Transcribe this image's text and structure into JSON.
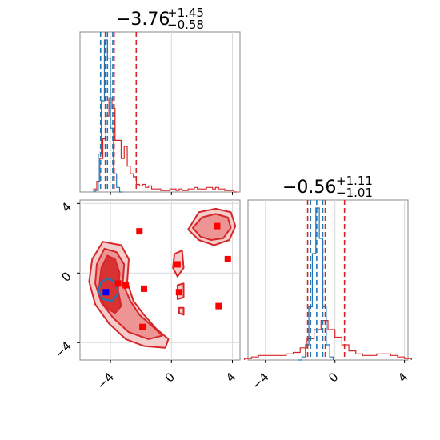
{
  "colors": {
    "red": "#d62728",
    "blue": "#1f77b4",
    "marker_red": "#ff0000",
    "marker_blue": "#0000ff",
    "grid": "#d9d9d9",
    "contour_fill_light": "#f4c7c7",
    "contour_fill_mid": "#ec8e8e",
    "contour_fill_dark": "#d62728"
  },
  "chart_data": {
    "type": "corner",
    "parameters": [
      "",
      ""
    ],
    "ranges": [
      [
        -6,
        4.5
      ],
      [
        -5,
        4.2
      ]
    ],
    "tick_values": [
      -4,
      0,
      4
    ],
    "tick_labels": [
      "−4",
      "0",
      "4"
    ],
    "grid": true,
    "panels": {
      "p1_marginal": {
        "title_value": "−3.76",
        "title_upper": "+1.45",
        "title_lower": "−0.58",
        "quantile_lines_red": [
          -4.34,
          -3.76,
          -2.31
        ],
        "quantile_lines_blue": [
          -4.65,
          -4.2,
          -3.85
        ],
        "hist_blue": {
          "x": [
            -4.9,
            -4.7,
            -4.5,
            -4.3,
            -4.1,
            -3.9,
            -3.7,
            -3.5,
            -3.3
          ],
          "y": [
            0.01,
            0.25,
            0.6,
            1.0,
            0.88,
            0.42,
            0.12,
            0.03,
            0.0
          ]
        },
        "hist_red": {
          "x": [
            -5.0,
            -4.8,
            -4.6,
            -4.4,
            -4.2,
            -4.0,
            -3.8,
            -3.6,
            -3.4,
            -3.2,
            -3.0,
            -2.8,
            -2.6,
            -2.4,
            -2.2,
            -2.0,
            -1.8,
            -1.6,
            -1.4,
            -1.2,
            -1.0,
            -0.8,
            -0.6,
            -0.4,
            -0.2,
            0.0,
            0.2,
            0.4,
            0.6,
            0.8,
            1.0,
            1.2,
            1.4,
            1.6,
            1.8,
            2.0,
            2.2,
            2.4,
            2.6,
            2.8,
            3.0,
            3.2,
            3.4,
            3.6,
            3.8,
            4.0,
            4.2
          ],
          "y": [
            0.02,
            0.07,
            0.22,
            0.35,
            0.5,
            0.62,
            0.55,
            0.34,
            0.34,
            0.22,
            0.3,
            0.17,
            0.12,
            0.1,
            0.05,
            0.04,
            0.05,
            0.03,
            0.04,
            0.02,
            0.02,
            0.02,
            0.01,
            0.01,
            0.01,
            0.02,
            0.02,
            0.01,
            0.02,
            0.01,
            0.01,
            0.02,
            0.02,
            0.03,
            0.02,
            0.02,
            0.02,
            0.03,
            0.03,
            0.02,
            0.03,
            0.02,
            0.02,
            0.01,
            0.01,
            0.01,
            0.0
          ]
        }
      },
      "p2_marginal": {
        "title_value": "−0.56",
        "title_upper": "+1.11",
        "title_lower": "−1.01",
        "quantile_lines_red": [
          -1.57,
          -0.56,
          0.55
        ],
        "quantile_lines_blue": [
          -1.4,
          -1.05,
          -0.7
        ],
        "hist_blue": {
          "x": [
            -2.0,
            -1.8,
            -1.6,
            -1.4,
            -1.2,
            -1.0,
            -0.8,
            -0.6,
            -0.4,
            -0.2
          ],
          "y": [
            0.0,
            0.02,
            0.1,
            0.35,
            0.7,
            1.0,
            0.8,
            0.35,
            0.1,
            0.02
          ]
        },
        "hist_red": {
          "x": [
            -5.0,
            -4.6,
            -4.2,
            -3.8,
            -3.4,
            -3.0,
            -2.6,
            -2.2,
            -1.8,
            -1.4,
            -1.0,
            -0.6,
            -0.2,
            0.2,
            0.6,
            1.0,
            1.4,
            1.8,
            2.2,
            2.6,
            3.0,
            3.4,
            3.8,
            4.2
          ],
          "y": [
            0.01,
            0.02,
            0.03,
            0.03,
            0.03,
            0.03,
            0.04,
            0.05,
            0.08,
            0.14,
            0.2,
            0.26,
            0.2,
            0.15,
            0.1,
            0.06,
            0.04,
            0.03,
            0.03,
            0.04,
            0.04,
            0.03,
            0.02,
            0.01
          ]
        }
      },
      "joint": {
        "red_markers": [
          [
            -2.1,
            2.4
          ],
          [
            3.0,
            2.7
          ],
          [
            0.4,
            0.5
          ],
          [
            3.7,
            0.8
          ],
          [
            -1.8,
            -0.9
          ],
          [
            0.5,
            -1.1
          ],
          [
            -1.9,
            -3.1
          ],
          [
            3.1,
            -1.9
          ],
          [
            -3.5,
            -0.6
          ],
          [
            -3.0,
            -0.7
          ]
        ],
        "blue_markers": [
          [
            -4.3,
            -1.1
          ]
        ],
        "contours_red": [
          [
            [
              -5.2,
              0.8
            ],
            [
              -4.5,
              1.8
            ],
            [
              -3.3,
              1.6
            ],
            [
              -2.8,
              0.8
            ],
            [
              -2.9,
              -0.5
            ],
            [
              -2.5,
              -1.6
            ],
            [
              -1.8,
              -2.4
            ],
            [
              -1.0,
              -3.2
            ],
            [
              -0.2,
              -3.8
            ],
            [
              -0.4,
              -4.3
            ],
            [
              -1.8,
              -4.2
            ],
            [
              -3.0,
              -3.8
            ],
            [
              -4.1,
              -2.9
            ],
            [
              -5.0,
              -1.8
            ],
            [
              -5.4,
              -0.5
            ]
          ],
          [
            [
              -4.9,
              0.5
            ],
            [
              -4.4,
              1.4
            ],
            [
              -3.6,
              1.2
            ],
            [
              -3.1,
              0.5
            ],
            [
              -3.2,
              -0.6
            ],
            [
              -2.7,
              -1.6
            ],
            [
              -2.1,
              -2.4
            ],
            [
              -1.2,
              -3.1
            ],
            [
              -0.6,
              -3.6
            ],
            [
              -1.5,
              -3.8
            ],
            [
              -2.8,
              -3.4
            ],
            [
              -3.8,
              -2.6
            ],
            [
              -4.6,
              -1.7
            ],
            [
              -5.0,
              -0.6
            ]
          ],
          [
            [
              -4.6,
              0.3
            ],
            [
              -4.2,
              1.0
            ],
            [
              -3.7,
              0.8
            ],
            [
              -3.4,
              0.0
            ],
            [
              -3.5,
              -1.0
            ],
            [
              -3.3,
              -1.9
            ],
            [
              -3.7,
              -2.3
            ],
            [
              -4.3,
              -2.0
            ],
            [
              -4.8,
              -1.2
            ]
          ],
          [
            [
              1.1,
              2.5
            ],
            [
              1.8,
              3.5
            ],
            [
              2.9,
              3.7
            ],
            [
              3.9,
              3.5
            ],
            [
              4.2,
              2.7
            ],
            [
              3.8,
              1.9
            ],
            [
              2.8,
              1.6
            ],
            [
              1.8,
              1.9
            ]
          ],
          [
            [
              1.4,
              2.6
            ],
            [
              2.0,
              3.2
            ],
            [
              2.9,
              3.4
            ],
            [
              3.7,
              3.2
            ],
            [
              3.9,
              2.6
            ],
            [
              3.4,
              2.0
            ],
            [
              2.6,
              1.9
            ],
            [
              1.9,
              2.1
            ]
          ],
          [
            [
              0.2,
              1.1
            ],
            [
              0.7,
              1.3
            ],
            [
              0.8,
              0.3
            ],
            [
              0.4,
              -0.2
            ],
            [
              0.1,
              0.3
            ]
          ],
          [
            [
              0.4,
              -0.7
            ],
            [
              0.8,
              -0.6
            ],
            [
              0.8,
              -1.4
            ],
            [
              0.4,
              -1.5
            ]
          ],
          [
            [
              0.5,
              -2.0
            ],
            [
              0.8,
              -2.0
            ],
            [
              0.8,
              -2.4
            ],
            [
              0.5,
              -2.3
            ]
          ]
        ],
        "contours_blue": [
          [
            [
              -4.6,
              -0.5
            ],
            [
              -4.1,
              -0.3
            ],
            [
              -3.6,
              -0.6
            ],
            [
              -3.5,
              -1.2
            ],
            [
              -3.9,
              -1.6
            ],
            [
              -4.5,
              -1.5
            ],
            [
              -4.8,
              -1.0
            ]
          ]
        ]
      }
    }
  }
}
